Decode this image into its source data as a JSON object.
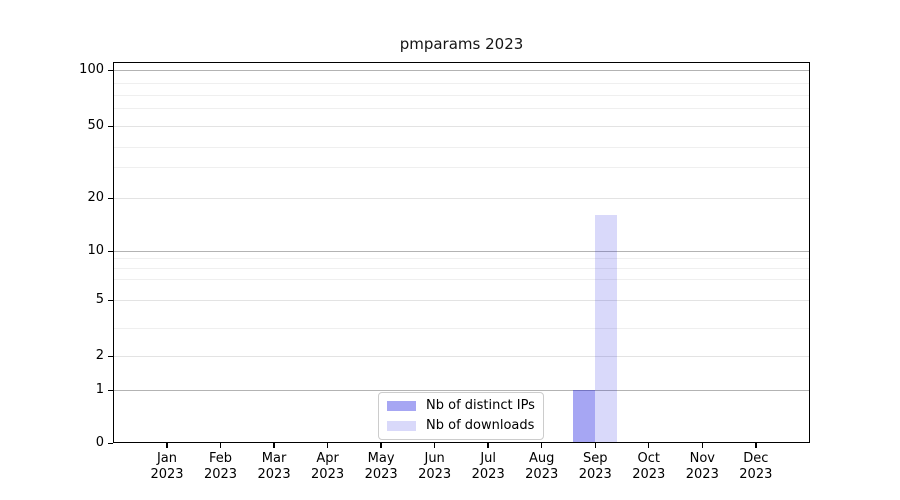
{
  "figure": {
    "title": "pmparams 2023"
  },
  "legend": {
    "items": [
      {
        "label": "Nb of distinct IPs",
        "color": "rgba(0,0,220,0.35)"
      },
      {
        "label": "Nb of downloads",
        "color": "rgba(0,0,220,0.15)"
      }
    ]
  },
  "chart_data": {
    "type": "bar",
    "title": "pmparams 2023",
    "categories": [
      "Jan 2023",
      "Feb 2023",
      "Mar 2023",
      "Apr 2023",
      "May 2023",
      "Jun 2023",
      "Jul 2023",
      "Aug 2023",
      "Sep 2023",
      "Oct 2023",
      "Nov 2023",
      "Dec 2023"
    ],
    "series": [
      {
        "name": "Nb of distinct IPs",
        "color": "rgba(0,0,220,0.35)",
        "values": [
          0,
          0,
          0,
          0,
          0,
          0,
          0,
          0,
          1,
          0,
          0,
          0
        ]
      },
      {
        "name": "Nb of downloads",
        "color": "rgba(0,0,220,0.15)",
        "values": [
          0,
          0,
          0,
          0,
          0,
          0,
          0,
          0,
          16,
          0,
          0,
          0
        ]
      }
    ],
    "xlabel": "",
    "ylabel": "",
    "yscale": "symlog",
    "y_ticks": [
      0,
      1,
      2,
      5,
      10,
      20,
      50,
      100
    ],
    "ylim": [
      0,
      115
    ],
    "grid": "horizontal major+minor",
    "legend_position": "lower center"
  }
}
